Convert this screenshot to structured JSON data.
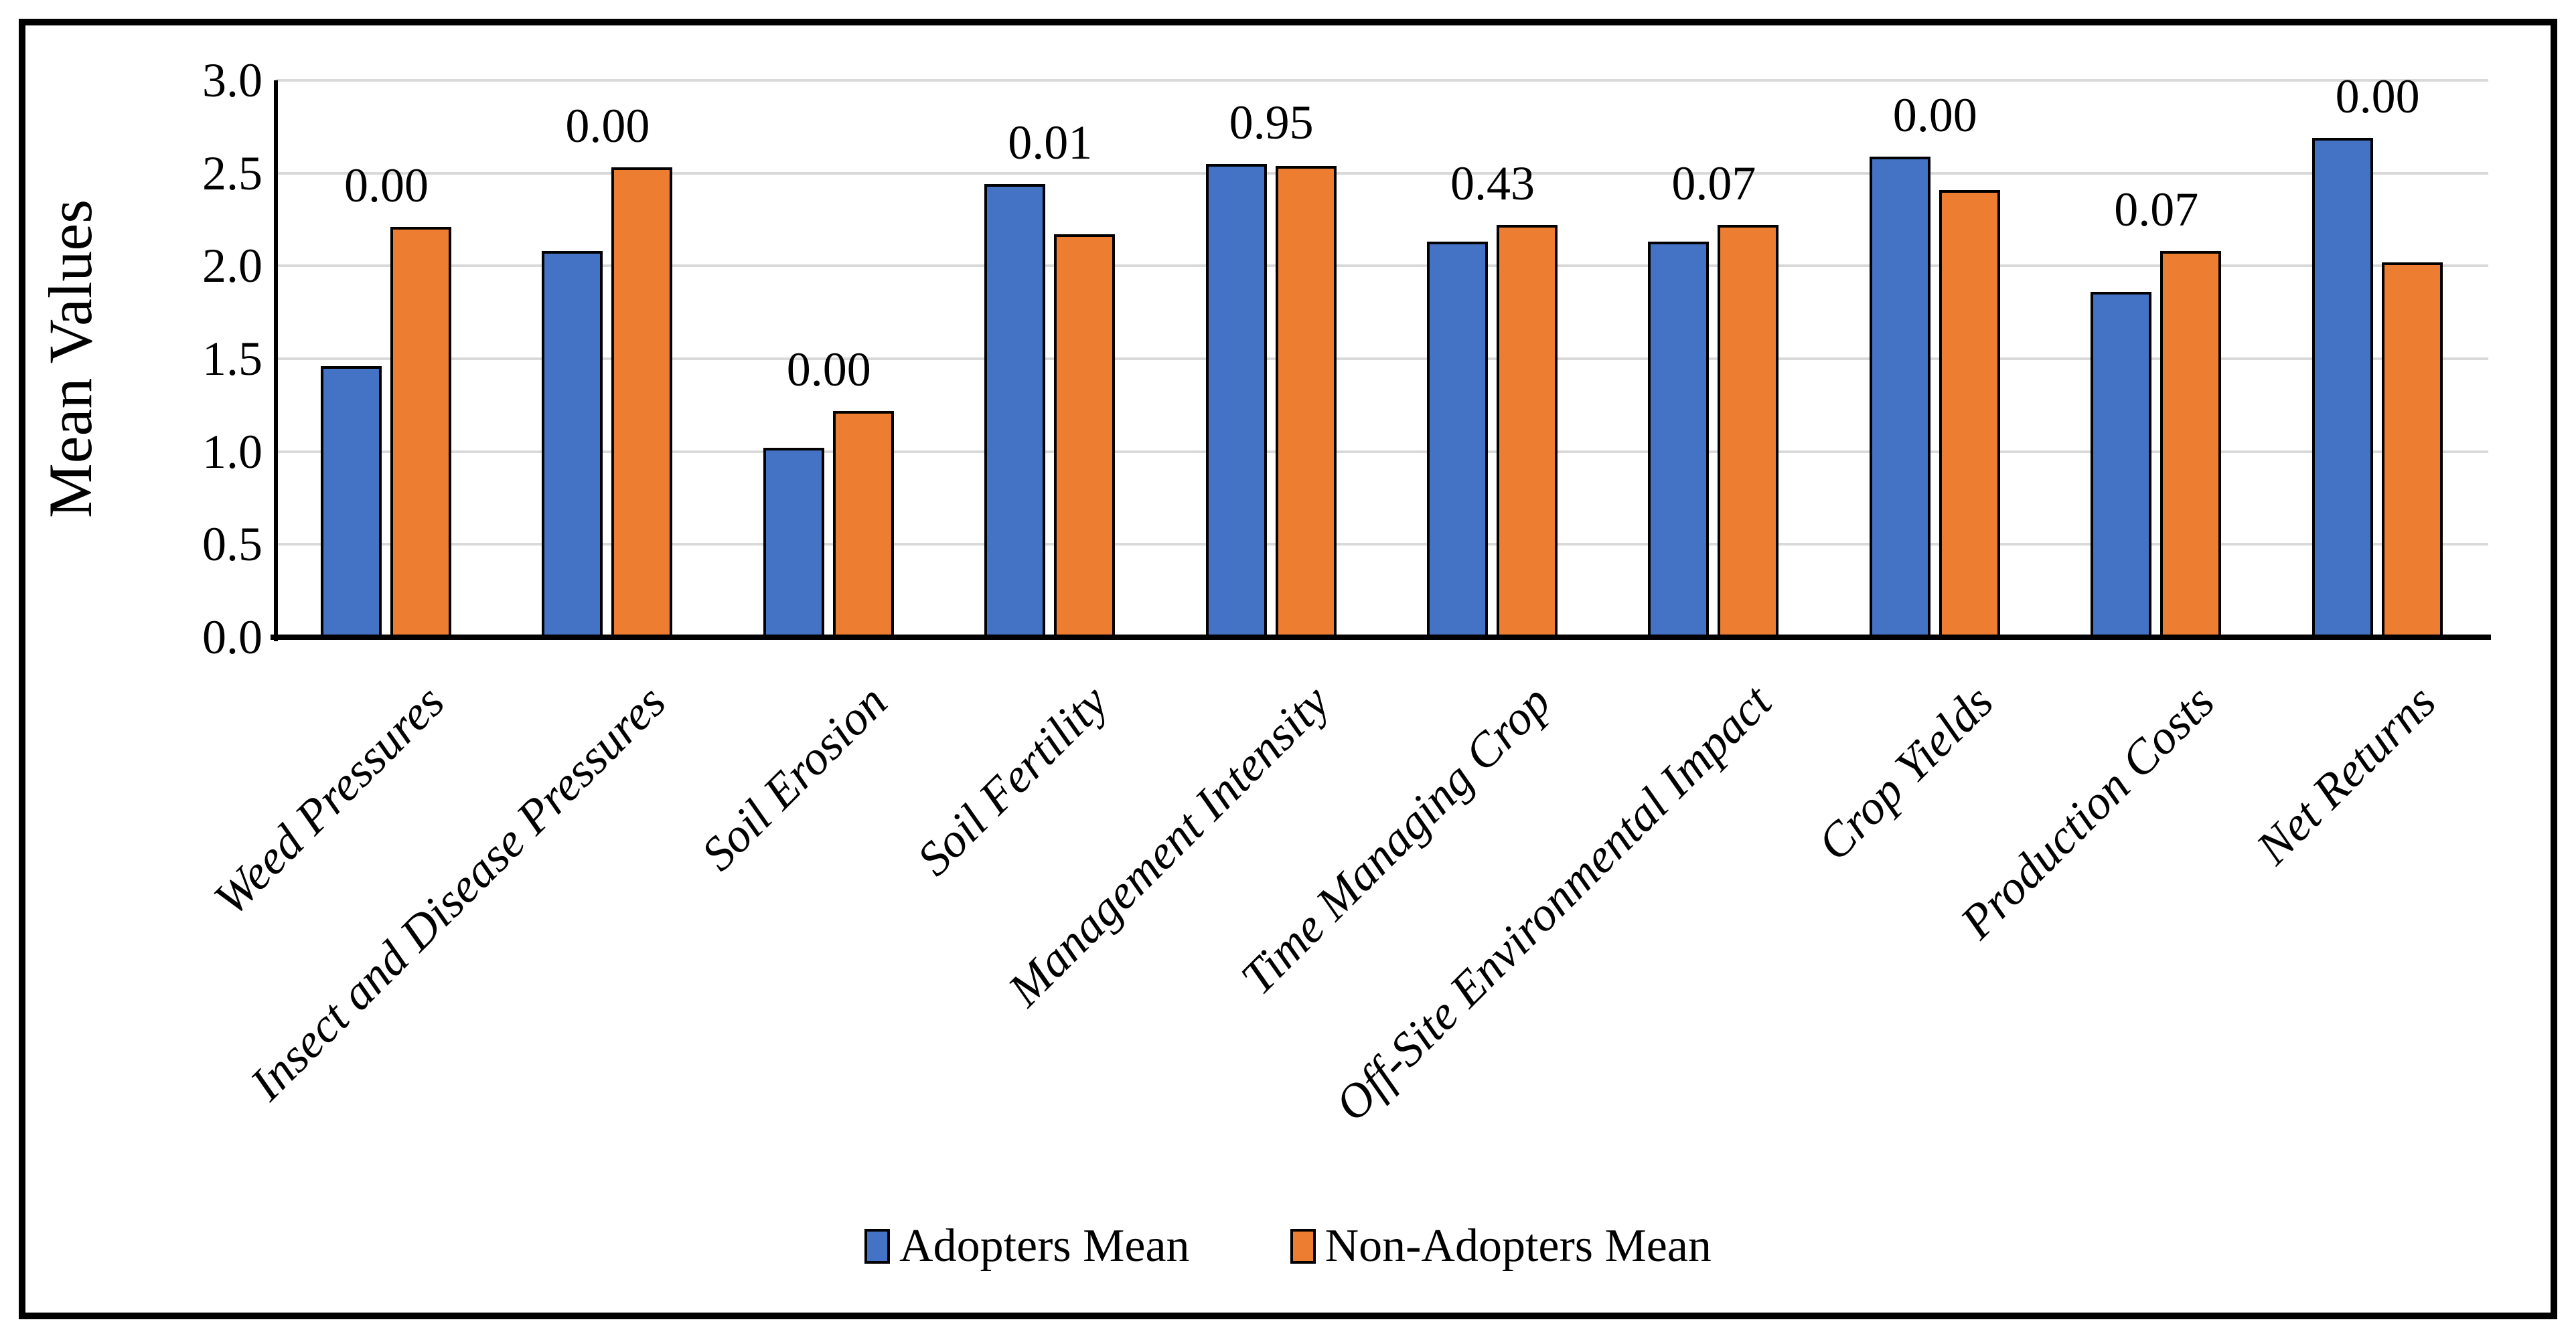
{
  "figure": {
    "background": "#FFFFFF",
    "border_color": "#000000"
  },
  "y_axis": {
    "title": "Mean Values",
    "tick_labels": [
      "0.0",
      "0.5",
      "1.0",
      "1.5",
      "2.0",
      "2.5",
      "3.0"
    ]
  },
  "legend": [
    {
      "label": "Adopters Mean",
      "color": "#4472C4"
    },
    {
      "label": "Non-Adopters Mean",
      "color": "#ED7D31"
    }
  ],
  "colors": {
    "adopters": "#4472C4",
    "non_adopters": "#ED7D31",
    "gridline": "#D9D9D9",
    "axis": "#000000",
    "bar_border": "#000000"
  },
  "chart_data": {
    "type": "bar",
    "title": "",
    "xlabel": "",
    "ylabel": "Mean Values",
    "ylim": [
      0,
      3
    ],
    "ytick_step": 0.5,
    "grid": true,
    "legend_position": "bottom",
    "categories": [
      "Weed Pressures",
      "Insect and Disease Pressures",
      "Soil Erosion",
      "Soil Fertility",
      "Management Intensity",
      "Time Managing Crop",
      "Off-Site Environmental Impact",
      "Crop Yields",
      "Production Costs",
      "Net Returns"
    ],
    "series": [
      {
        "name": "Adopters Mean",
        "color": "#4472C4",
        "values": [
          1.46,
          2.08,
          1.02,
          2.44,
          2.55,
          2.13,
          2.13,
          2.59,
          1.86,
          2.69
        ]
      },
      {
        "name": "Non-Adopters Mean",
        "color": "#ED7D31",
        "values": [
          2.21,
          2.53,
          1.22,
          2.17,
          2.54,
          2.22,
          2.22,
          2.41,
          2.08,
          2.02
        ]
      }
    ],
    "value_labels": [
      "0.00",
      "0.00",
      "0.00",
      "0.01",
      "0.95",
      "0.43",
      "0.07",
      "0.00",
      "0.07",
      "0.00"
    ]
  }
}
